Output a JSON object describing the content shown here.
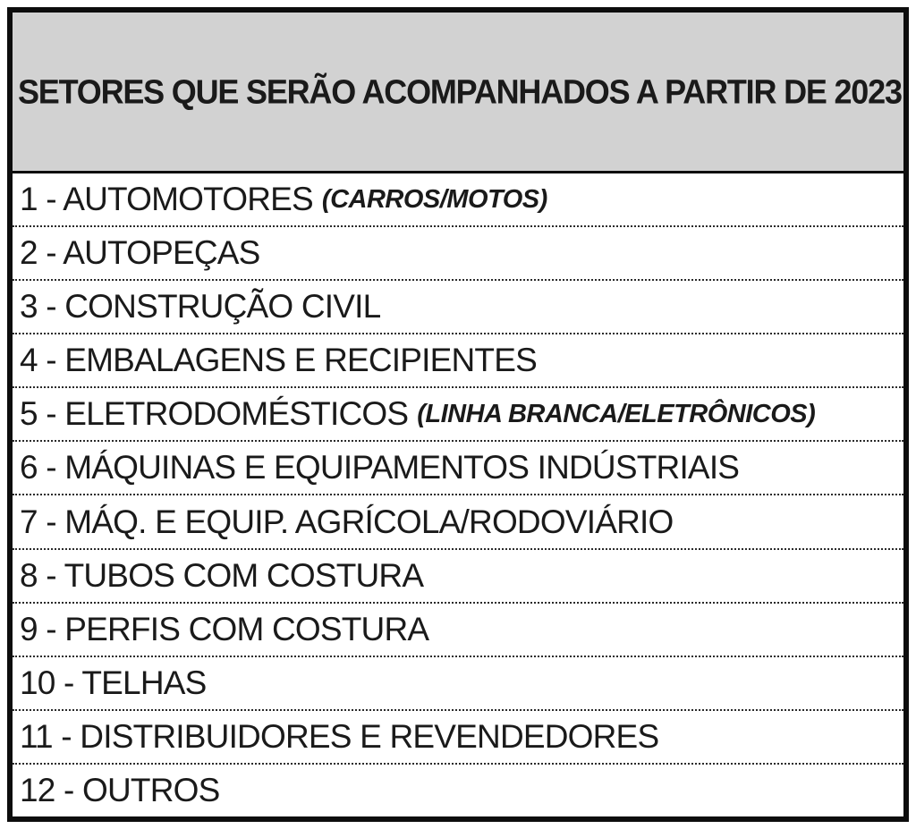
{
  "header": {
    "title": "SETORES QUE SERÃO ACOMPANHADOS A PARTIR DE 2023"
  },
  "rows": [
    {
      "label": "1 - AUTOMOTORES",
      "note": "(CARROS/MOTOS)"
    },
    {
      "label": "2 - AUTOPEÇAS",
      "note": ""
    },
    {
      "label": "3 - CONSTRUÇÃO CIVIL",
      "note": ""
    },
    {
      "label": "4 - EMBALAGENS E RECIPIENTES",
      "note": ""
    },
    {
      "label": "5 - ELETRODOMÉSTICOS",
      "note": "(LINHA BRANCA/ELETRÔNICOS)"
    },
    {
      "label": "6 - MÁQUINAS E EQUIPAMENTOS INDÚSTRIAIS",
      "note": ""
    },
    {
      "label": "7 - MÁQ. E EQUIP. AGRÍCOLA/RODOVIÁRIO",
      "note": ""
    },
    {
      "label": "8 - TUBOS COM COSTURA",
      "note": ""
    },
    {
      "label": "9 - PERFIS COM COSTURA",
      "note": ""
    },
    {
      "label": "10 - TELHAS",
      "note": ""
    },
    {
      "label": "11 - DISTRIBUIDORES E REVENDEDORES",
      "note": ""
    },
    {
      "label": "12 - OUTROS",
      "note": ""
    }
  ],
  "colors": {
    "header_bg": "#d2d2d2",
    "border": "#0d0d0d",
    "text": "#1a1a1a"
  }
}
